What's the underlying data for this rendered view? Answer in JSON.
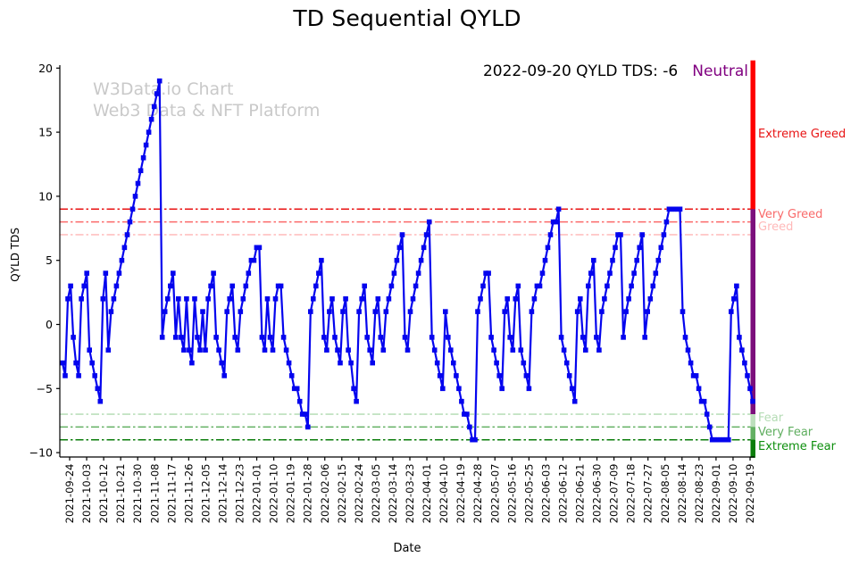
{
  "figure": {
    "title": "TD Sequential QYLD",
    "watermark_line1": "W3Data.io Chart",
    "watermark_line2": "Web3 Data & NFT Platform",
    "annotation_text": "2022-09-20 QYLD TDS: -6",
    "annotation_sentiment": "Neutral",
    "annotation_sentiment_color": "#800080",
    "xlabel": "Date",
    "ylabel": "QYLD TDS"
  },
  "chart_data": {
    "type": "line",
    "title": "TD Sequential QYLD",
    "xlabel": "Date",
    "ylabel": "QYLD TDS",
    "series_name": "QYLD TDS",
    "ylim": [
      -10,
      20
    ],
    "ytick_values": [
      20,
      15,
      10,
      5,
      0,
      -5,
      -10
    ],
    "ytick_labels": [
      "20",
      "15",
      "10",
      "5",
      "0",
      "−5",
      "−10"
    ],
    "xtick_labels": [
      "2021-09-24",
      "2021-10-03",
      "2021-10-12",
      "2021-10-21",
      "2021-10-30",
      "2021-11-08",
      "2021-11-17",
      "2021-11-26",
      "2021-12-05",
      "2021-12-14",
      "2021-12-23",
      "2022-01-01",
      "2022-01-10",
      "2022-01-19",
      "2022-01-28",
      "2022-02-06",
      "2022-02-15",
      "2022-02-24",
      "2022-03-05",
      "2022-03-14",
      "2022-03-23",
      "2022-04-01",
      "2022-04-10",
      "2022-04-19",
      "2022-04-28",
      "2022-05-07",
      "2022-05-16",
      "2022-05-25",
      "2022-06-03",
      "2022-06-12",
      "2022-06-21",
      "2022-06-30",
      "2022-07-09",
      "2022-07-18",
      "2022-07-27",
      "2022-08-05",
      "2022-08-14",
      "2022-08-23",
      "2022-09-01",
      "2022-09-10",
      "2022-09-19"
    ],
    "x_start": "2021-09-22",
    "x_end": "2022-09-20",
    "x_frequency": "trading-days",
    "line_color": "#0404ee",
    "marker_style": "square",
    "grid": false,
    "legend": "none",
    "values": [
      -3,
      -4,
      2,
      3,
      -1,
      -3,
      -4,
      2,
      3,
      4,
      -2,
      -3,
      -4,
      -5,
      -6,
      2,
      4,
      -2,
      1,
      2,
      3,
      4,
      5,
      6,
      7,
      8,
      9,
      10,
      11,
      12,
      13,
      14,
      15,
      16,
      17,
      18,
      19,
      -1,
      1,
      2,
      3,
      4,
      -1,
      2,
      -1,
      -2,
      2,
      -2,
      -3,
      2,
      -1,
      -2,
      1,
      -2,
      2,
      3,
      4,
      -1,
      -2,
      -3,
      -4,
      1,
      2,
      3,
      -1,
      -2,
      1,
      2,
      3,
      4,
      5,
      5,
      6,
      6,
      -1,
      -2,
      2,
      -1,
      -2,
      2,
      3,
      3,
      -1,
      -2,
      -3,
      -4,
      -5,
      -5,
      -6,
      -7,
      -7,
      -8,
      1,
      2,
      3,
      4,
      5,
      -1,
      -2,
      1,
      2,
      -1,
      -2,
      -3,
      1,
      2,
      -2,
      -3,
      -5,
      -6,
      1,
      2,
      3,
      -1,
      -2,
      -3,
      1,
      2,
      -1,
      -2,
      1,
      2,
      3,
      4,
      5,
      6,
      7,
      -1,
      -2,
      1,
      2,
      3,
      4,
      5,
      6,
      7,
      8,
      -1,
      -2,
      -3,
      -4,
      -5,
      1,
      -1,
      -2,
      -3,
      -4,
      -5,
      -6,
      -7,
      -7,
      -8,
      -9,
      -9,
      1,
      2,
      3,
      4,
      4,
      -1,
      -2,
      -3,
      -4,
      -5,
      1,
      2,
      -1,
      -2,
      2,
      3,
      -2,
      -3,
      -4,
      -5,
      1,
      2,
      3,
      3,
      4,
      5,
      6,
      7,
      8,
      8,
      9,
      -1,
      -2,
      -3,
      -4,
      -5,
      -6,
      1,
      2,
      -1,
      -2,
      3,
      4,
      5,
      -1,
      -2,
      1,
      2,
      3,
      4,
      5,
      6,
      7,
      7,
      -1,
      1,
      2,
      3,
      4,
      5,
      6,
      7,
      -1,
      1,
      2,
      3,
      4,
      5,
      6,
      7,
      8,
      9,
      9,
      9,
      9,
      9,
      1,
      -1,
      -2,
      -3,
      -4,
      -4,
      -5,
      -6,
      -6,
      -7,
      -8,
      -9,
      -9,
      -9,
      -9,
      -9,
      -9,
      -9,
      1,
      2,
      3,
      -1,
      -2,
      -3,
      -4,
      -5,
      -6
    ],
    "levels": [
      {
        "value": 9,
        "label": "Extreme Greed",
        "line_color": "#e81313",
        "label_color": "#e81313"
      },
      {
        "value": 8,
        "label": "Very Greed",
        "line_color": "#fb6a6a",
        "label_color": "#f96a6a"
      },
      {
        "value": 7,
        "label": "Greed",
        "line_color": "#ffc0c0",
        "label_color": "#ffb9b9"
      },
      {
        "value": -7,
        "label": "Fear",
        "line_color": "#bcdfbc",
        "label_color": "#b5dcb5"
      },
      {
        "value": -8,
        "label": "Very Fear",
        "line_color": "#63b063",
        "label_color": "#5fae5f"
      },
      {
        "value": -9,
        "label": "Extreme Fear",
        "line_color": "#0b7d0b",
        "label_color": "#0e8f0e"
      }
    ],
    "current_bar": {
      "segments": [
        {
          "zone": "extreme-greed",
          "from": 20.6,
          "to": 9,
          "color": "#fe0000"
        },
        {
          "zone": "neutral",
          "from": 9,
          "to": -7,
          "color": "#7c0f7c"
        },
        {
          "zone": "fear",
          "from": -7,
          "to": -8,
          "color": "#bcdfbc"
        },
        {
          "zone": "very-fear",
          "from": -8,
          "to": -9,
          "color": "#63b063"
        },
        {
          "zone": "extreme-fear",
          "from": -9,
          "to": -10.4,
          "color": "#0b7d0b"
        }
      ]
    }
  }
}
